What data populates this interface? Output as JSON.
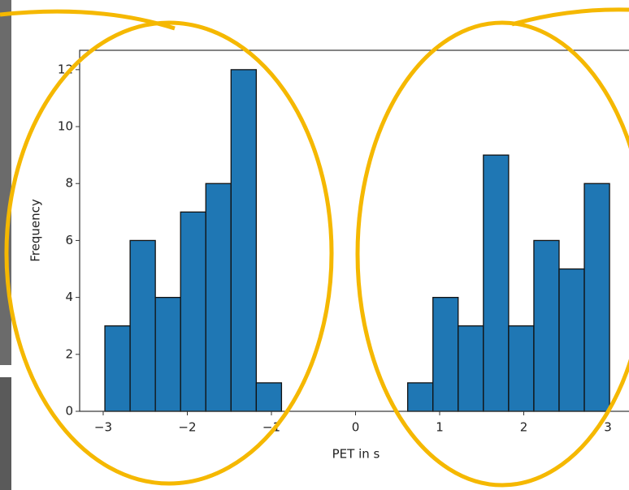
{
  "chart_data": {
    "type": "histogram",
    "x_label": "PET in s",
    "y_label": "Frequency",
    "bins": [
      -2.98,
      -2.68,
      -2.38,
      -2.08,
      -1.78,
      -1.48,
      -1.18,
      -0.88,
      -0.58,
      -0.28,
      0.02,
      0.32,
      0.62,
      0.92,
      1.22,
      1.52,
      1.82,
      2.12,
      2.42,
      2.72,
      3.02
    ],
    "values": [
      3,
      6,
      4,
      7,
      8,
      12,
      1,
      0,
      0,
      0,
      0,
      0,
      1,
      4,
      3,
      9,
      3,
      6,
      5,
      8
    ],
    "color": "#1f77b4",
    "xlim": [
      -3.28,
      3.28
    ],
    "ylim": [
      0,
      12.68
    ],
    "xticks": [
      {
        "value": -3,
        "label": "−3"
      },
      {
        "value": -2,
        "label": "−2"
      },
      {
        "value": -1,
        "label": "−1"
      },
      0,
      1,
      2,
      3
    ],
    "yticks": [
      0,
      2,
      4,
      6,
      8,
      10,
      12
    ]
  }
}
